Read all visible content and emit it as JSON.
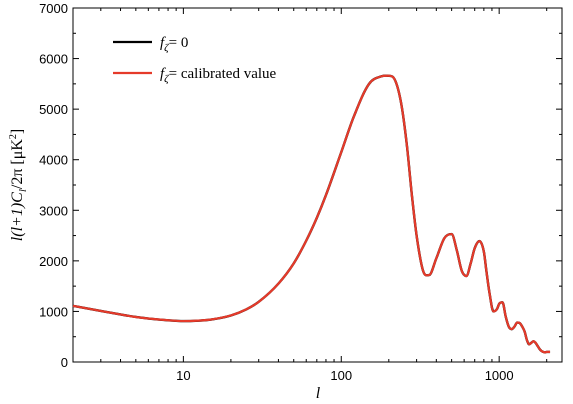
{
  "chart_data": {
    "type": "line",
    "title": "",
    "xlabel": "l",
    "ylabel": "l(l+1)C_l/2π [μK²]",
    "x_scale": "log",
    "xlim": [
      2,
      2500
    ],
    "ylim": [
      0,
      7000
    ],
    "grid": false,
    "legend_position": "top-left",
    "x_ticks": [
      10,
      100,
      1000
    ],
    "y_ticks": [
      0,
      1000,
      2000,
      3000,
      4000,
      5000,
      6000,
      7000
    ],
    "series": [
      {
        "name": "f_ζ = 0",
        "color": "#000000",
        "x": [
          2,
          3,
          4,
          5,
          6,
          8,
          10,
          12,
          15,
          20,
          25,
          30,
          40,
          50,
          60,
          70,
          80,
          100,
          120,
          150,
          180,
          200,
          220,
          240,
          260,
          280,
          300,
          330,
          360,
          400,
          450,
          500,
          540,
          580,
          620,
          660,
          700,
          750,
          800,
          830,
          870,
          920,
          970,
          1000,
          1050,
          1100,
          1150,
          1200,
          1250,
          1300,
          1350,
          1400,
          1450,
          1500,
          1550,
          1600,
          1650,
          1700,
          1750,
          1800,
          1850,
          1900,
          1950,
          2000,
          2100
        ],
        "y": [
          1110,
          1010,
          940,
          890,
          860,
          825,
          810,
          815,
          840,
          920,
          1040,
          1190,
          1550,
          1950,
          2400,
          2850,
          3300,
          4150,
          4850,
          5500,
          5650,
          5660,
          5560,
          5100,
          4300,
          3300,
          2500,
          1800,
          1720,
          2050,
          2450,
          2530,
          2200,
          1800,
          1700,
          1950,
          2250,
          2390,
          2180,
          1800,
          1350,
          1000,
          1050,
          1150,
          1180,
          900,
          700,
          650,
          700,
          780,
          770,
          700,
          600,
          430,
          350,
          380,
          410,
          380,
          320,
          260,
          220,
          200,
          190,
          200,
          200
        ]
      },
      {
        "name": "f_ζ = calibrated value",
        "color": "#e53a2a",
        "x": [
          2,
          3,
          4,
          5,
          6,
          8,
          10,
          12,
          15,
          20,
          25,
          30,
          40,
          50,
          60,
          70,
          80,
          100,
          120,
          150,
          180,
          200,
          220,
          240,
          260,
          280,
          300,
          330,
          360,
          400,
          450,
          500,
          540,
          580,
          620,
          660,
          700,
          750,
          800,
          830,
          870,
          920,
          970,
          1000,
          1050,
          1100,
          1150,
          1200,
          1250,
          1300,
          1350,
          1400,
          1450,
          1500,
          1550,
          1600,
          1650,
          1700,
          1750,
          1800,
          1850,
          1900,
          1950,
          2000,
          2100
        ],
        "y": [
          1110,
          1010,
          940,
          890,
          860,
          825,
          810,
          815,
          840,
          920,
          1040,
          1190,
          1550,
          1950,
          2400,
          2850,
          3300,
          4150,
          4850,
          5500,
          5650,
          5660,
          5560,
          5100,
          4300,
          3300,
          2500,
          1800,
          1720,
          2050,
          2450,
          2530,
          2200,
          1800,
          1700,
          1950,
          2250,
          2390,
          2180,
          1800,
          1350,
          1000,
          1050,
          1150,
          1180,
          900,
          700,
          650,
          700,
          780,
          770,
          700,
          600,
          430,
          350,
          380,
          410,
          380,
          320,
          260,
          220,
          200,
          190,
          200,
          200
        ]
      }
    ]
  },
  "legend": {
    "item1": {
      "symbol": "f",
      "subscript": "ζ",
      "rest": "= 0"
    },
    "item2": {
      "symbol": "f",
      "subscript": "ζ",
      "rest": "= calibrated value"
    }
  },
  "axes": {
    "xlabel": "l",
    "ylabel_parts": {
      "a": "l(l+1)C",
      "sub": "l",
      "b": "/2π [μK",
      "sup": "2",
      "c": "]"
    }
  }
}
